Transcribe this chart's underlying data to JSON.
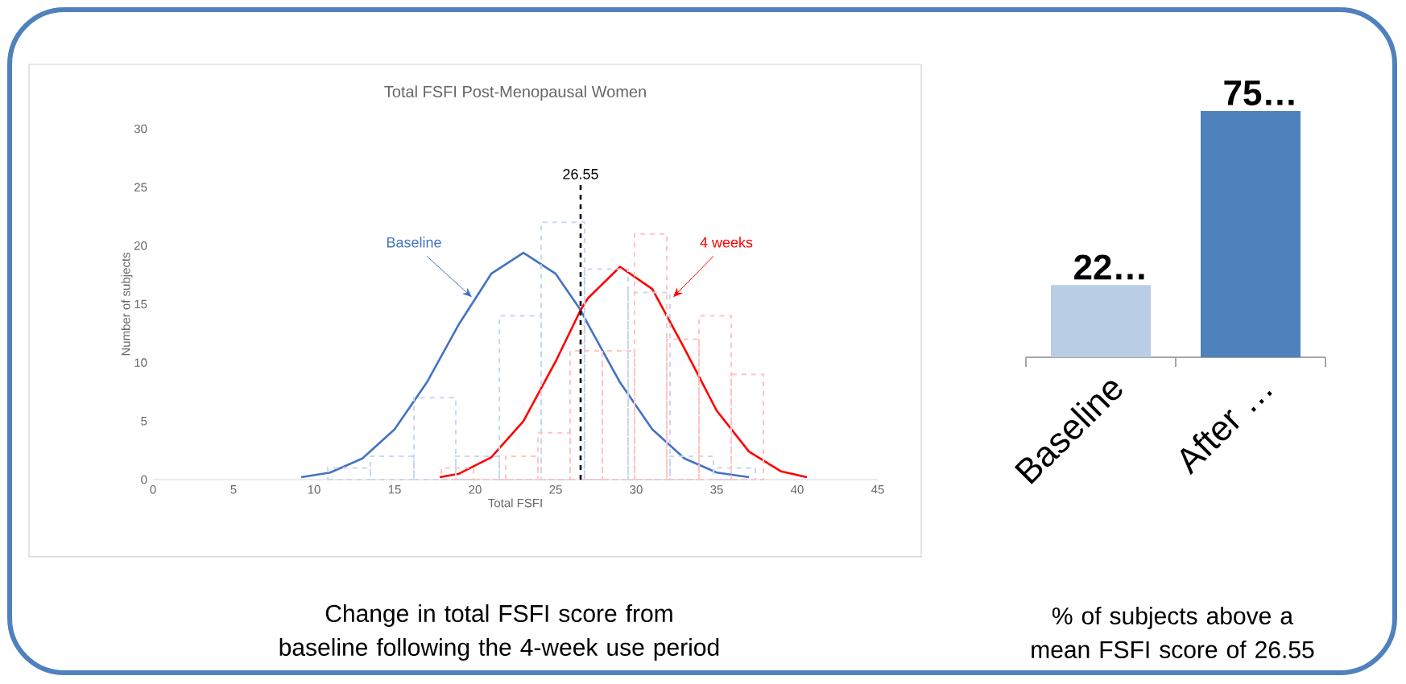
{
  "chart_data": [
    {
      "type": "line",
      "title": "Total FSFI Post-Menopausal Women",
      "xlabel": "Total FSFI",
      "ylabel": "Number of subjects",
      "xlim": [
        0,
        45
      ],
      "ylim": [
        0,
        30
      ],
      "xticks": [
        0,
        5,
        10,
        15,
        20,
        25,
        30,
        35,
        40,
        45
      ],
      "yticks": [
        0,
        5,
        10,
        15,
        20,
        25,
        30
      ],
      "series": [
        {
          "name": "Baseline",
          "type": "line",
          "color": "#4472c4",
          "x": [
            9.2,
            11,
            13,
            15,
            17,
            19,
            21,
            23,
            25,
            26.55,
            27,
            29,
            31,
            33,
            35,
            37
          ],
          "values": [
            0.2,
            0.6,
            1.8,
            4.3,
            8.3,
            13.3,
            17.6,
            19.4,
            17.6,
            14.5,
            13.3,
            8.3,
            4.3,
            1.8,
            0.6,
            0.2
          ]
        },
        {
          "name": "4 weeks",
          "type": "line",
          "color": "#ff0000",
          "x": [
            17.8,
            19,
            21,
            23,
            25,
            26.55,
            27,
            29,
            31,
            33,
            35,
            37,
            39,
            40.6
          ],
          "values": [
            0.2,
            0.5,
            1.9,
            5.0,
            10.1,
            14.5,
            15.5,
            18.2,
            16.3,
            11.2,
            5.9,
            2.4,
            0.7,
            0.2
          ]
        },
        {
          "type": "histogram",
          "color": "#c9d7f0",
          "line_style": "dashed",
          "bins": [
            10.85,
            13.5,
            16.2,
            18.8,
            21.5,
            24.1,
            26.8,
            29.5,
            32.1,
            34.8,
            37.4
          ],
          "values": [
            1,
            2,
            7,
            2,
            14,
            22,
            18,
            16,
            2,
            1
          ]
        },
        {
          "type": "histogram",
          "color": "#ffc4c4",
          "line_style": "dashed",
          "bins": [
            17.9,
            19.9,
            21.9,
            23.9,
            25.9,
            27.9,
            29.9,
            31.9,
            33.9,
            35.9,
            37.9
          ],
          "values": [
            1,
            0,
            2,
            4,
            11,
            11,
            21,
            12,
            14,
            9
          ]
        }
      ],
      "ref_lines": [
        {
          "axis": "x",
          "value": 26.55,
          "label": "26.55",
          "color": "#000000",
          "line_style": "dashed"
        }
      ],
      "annotations": [
        "Change in total FSFI score from baseline following the 4-week use period"
      ]
    },
    {
      "type": "bar",
      "categories": [
        "Baseline",
        "After …"
      ],
      "values": [
        22,
        75
      ],
      "colors": [
        "#b9cde5",
        "#4f81bd"
      ],
      "value_labels": [
        "22…",
        "75…"
      ],
      "annotations": [
        "% of subjects above a mean FSFI score of 26.55"
      ]
    }
  ]
}
